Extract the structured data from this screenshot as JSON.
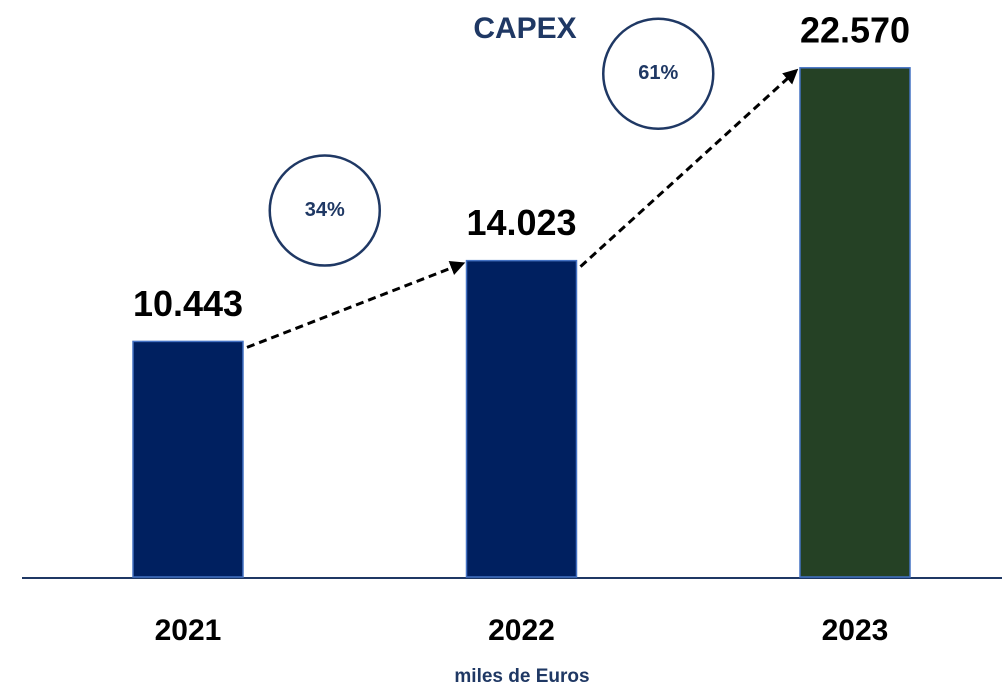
{
  "chart_data": {
    "type": "bar",
    "title": "CAPEX",
    "x_label": "miles de Euros",
    "categories": [
      "2021",
      "2022",
      "2023"
    ],
    "values": [
      10443,
      14023,
      22570
    ],
    "value_labels": [
      "10.443",
      "14.023",
      "22.570"
    ],
    "colors": [
      "#002060",
      "#002060",
      "#254125"
    ],
    "growth_labels": [
      "34%",
      "61%"
    ],
    "ylim": [
      0,
      25000
    ]
  }
}
